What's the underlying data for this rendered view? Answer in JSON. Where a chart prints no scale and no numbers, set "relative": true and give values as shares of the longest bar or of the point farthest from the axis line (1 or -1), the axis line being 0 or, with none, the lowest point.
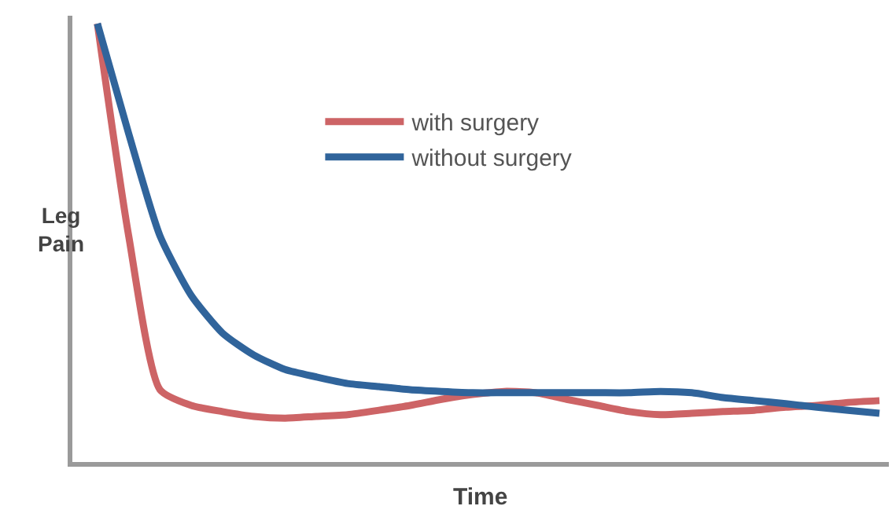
{
  "chart_data": {
    "type": "line",
    "relative": true,
    "xlabel": "Time",
    "ylabel": "Leg\nPain",
    "legend": "top",
    "marker": "none",
    "line_style": "solid",
    "categories": [
      null,
      null,
      null,
      null,
      null,
      null,
      null,
      null,
      null,
      null,
      null,
      null,
      null,
      null,
      null,
      null,
      null,
      null,
      null,
      null,
      null,
      null,
      null,
      null,
      null,
      null
    ],
    "series": [
      {
        "name": "with surgery",
        "color": "#cd6466",
        "values": [
          1.0,
          0.516,
          0.165,
          0.129,
          0.115,
          0.104,
          0.1,
          0.104,
          0.108,
          0.118,
          0.129,
          0.143,
          0.154,
          0.161,
          0.158,
          0.143,
          0.129,
          0.115,
          0.108,
          0.111,
          0.115,
          0.118,
          0.125,
          0.129,
          0.136,
          0.14
        ]
      },
      {
        "name": "without surgery",
        "color": "#30649b",
        "values": [
          1.0,
          0.749,
          0.516,
          0.38,
          0.294,
          0.244,
          0.211,
          0.194,
          0.179,
          0.172,
          0.165,
          0.161,
          0.158,
          0.158,
          0.158,
          0.158,
          0.158,
          0.158,
          0.161,
          0.158,
          0.147,
          0.14,
          0.133,
          0.125,
          0.118,
          0.111
        ]
      }
    ]
  }
}
